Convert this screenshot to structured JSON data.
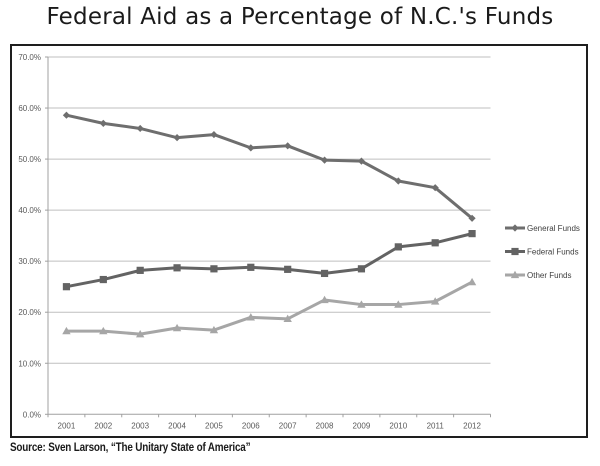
{
  "title": "Federal Aid as a Percentage of N.C.'s Funds",
  "source": "Source: Sven Larson, “The Unitary State of America”",
  "chart_data": {
    "type": "line",
    "title": "Federal Aid as a Percentage of N.C.'s Funds",
    "xlabel": "",
    "ylabel": "",
    "categories": [
      "2001",
      "2002",
      "2003",
      "2004",
      "2005",
      "2006",
      "2007",
      "2008",
      "2009",
      "2010",
      "2011",
      "2012"
    ],
    "ylim": [
      0,
      70
    ],
    "yticks": [
      0,
      10,
      20,
      30,
      40,
      50,
      60,
      70
    ],
    "ytick_labels": [
      "0.0%",
      "10.0%",
      "20.0%",
      "30.0%",
      "40.0%",
      "50.0%",
      "60.0%",
      "70.0%"
    ],
    "grid": true,
    "legend_position": "right",
    "series": [
      {
        "name": "General Funds",
        "marker": "diamond",
        "color": "#6e6e6e",
        "values": [
          58.6,
          57.0,
          56.0,
          54.2,
          54.8,
          52.2,
          52.6,
          49.8,
          49.6,
          45.7,
          44.4,
          38.4
        ]
      },
      {
        "name": "Federal Funds",
        "marker": "square",
        "color": "#636363",
        "values": [
          25.0,
          26.4,
          28.2,
          28.7,
          28.5,
          28.8,
          28.4,
          27.6,
          28.5,
          32.8,
          33.6,
          35.4
        ]
      },
      {
        "name": "Other Funds",
        "marker": "triangle",
        "color": "#a6a6a6",
        "values": [
          16.3,
          16.3,
          15.7,
          16.9,
          16.5,
          19.0,
          18.7,
          22.4,
          21.5,
          21.5,
          22.1,
          25.9
        ]
      }
    ]
  }
}
